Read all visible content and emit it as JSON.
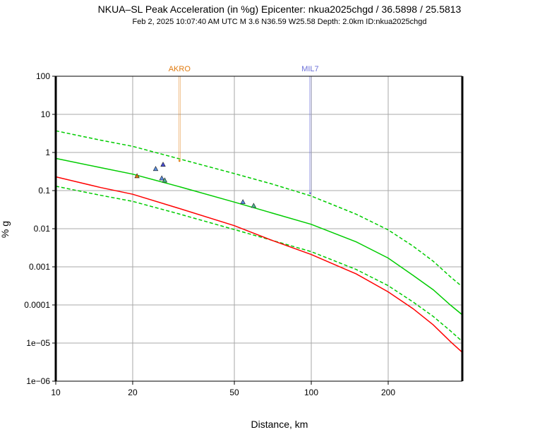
{
  "title": "NKUA–SL Peak Acceleration (in %g) Epicenter: nkua2025chgd / 36.5898 / 25.5813",
  "subtitle": "Feb  2, 2025 10:07:40 AM UTC   M 3.6   N36.59 W25.58   Depth: 2.0km   ID:nkua2025chgd",
  "chart_data": {
    "type": "scatter",
    "xlabel": "Distance, km",
    "ylabel": "% g",
    "x_scale": "log",
    "y_scale": "log",
    "xlim": [
      10,
      390
    ],
    "ylim": [
      1e-06,
      100
    ],
    "grid": true,
    "x_ticks": [
      {
        "value": 10,
        "label": "10"
      },
      {
        "value": 20,
        "label": "20"
      },
      {
        "value": 50,
        "label": "50"
      },
      {
        "value": 100,
        "label": "100"
      },
      {
        "value": 200,
        "label": "200"
      }
    ],
    "y_ticks": [
      {
        "value": 100,
        "label": "100"
      },
      {
        "value": 10,
        "label": "10"
      },
      {
        "value": 1,
        "label": "1"
      },
      {
        "value": 0.1,
        "label": "0.1"
      },
      {
        "value": 0.01,
        "label": "0.01"
      },
      {
        "value": 0.001,
        "label": "0.001"
      },
      {
        "value": 0.0001,
        "label": "0.0001"
      },
      {
        "value": 1e-05,
        "label": "1e−05"
      },
      {
        "value": 1e-06,
        "label": "1e−06"
      }
    ],
    "curves": [
      {
        "color": "#00cc00",
        "dash": false,
        "x": [
          10,
          15,
          20,
          30,
          50,
          70,
          100,
          150,
          200,
          250,
          300,
          350,
          390
        ],
        "y": [
          0.7,
          0.4,
          0.27,
          0.13,
          0.05,
          0.026,
          0.013,
          0.0045,
          0.0017,
          0.0006,
          0.00025,
          0.0001,
          5.5e-05
        ]
      },
      {
        "color": "#00cc00",
        "dash": true,
        "x": [
          10,
          15,
          20,
          30,
          50,
          70,
          100,
          150,
          200,
          250,
          300,
          350,
          390
        ],
        "y": [
          3.7,
          2.1,
          1.45,
          0.7,
          0.28,
          0.15,
          0.072,
          0.024,
          0.0093,
          0.0035,
          0.0014,
          0.00055,
          0.0003
        ]
      },
      {
        "color": "#00cc00",
        "dash": true,
        "x": [
          10,
          15,
          20,
          30,
          50,
          70,
          100,
          150,
          200,
          250,
          300,
          350,
          390
        ],
        "y": [
          0.13,
          0.075,
          0.052,
          0.025,
          0.0095,
          0.005,
          0.0025,
          0.00085,
          0.00032,
          0.00012,
          5e-05,
          2.1e-05,
          1.1e-05
        ]
      },
      {
        "color": "#ff0000",
        "dash": false,
        "x": [
          10,
          15,
          20,
          30,
          50,
          70,
          100,
          150,
          200,
          250,
          300,
          350,
          390
        ],
        "y": [
          0.23,
          0.12,
          0.08,
          0.035,
          0.012,
          0.005,
          0.0021,
          0.00065,
          0.00022,
          8e-05,
          3e-05,
          1.1e-05,
          5.7e-06
        ]
      }
    ],
    "points": [
      {
        "x": 20.8,
        "y": 0.24,
        "color": "#e07b10"
      },
      {
        "x": 24.6,
        "y": 0.37,
        "color": "#5a8ee0"
      },
      {
        "x": 26.3,
        "y": 0.48,
        "color": "#4b50d8"
      },
      {
        "x": 26.0,
        "y": 0.21,
        "color": "#5a8ee0"
      },
      {
        "x": 26.7,
        "y": 0.185,
        "color": "#4cb890"
      },
      {
        "x": 54.0,
        "y": 0.05,
        "color": "#5a8ee0"
      },
      {
        "x": 59.5,
        "y": 0.04,
        "color": "#4cb890"
      }
    ],
    "stations": [
      {
        "name": "AKRO",
        "x": 30.5,
        "y": 0.6,
        "color": "#e07b10"
      },
      {
        "name": "MIL7",
        "x": 99.0,
        "y": 0.085,
        "color": "#6b6fd8"
      }
    ]
  }
}
